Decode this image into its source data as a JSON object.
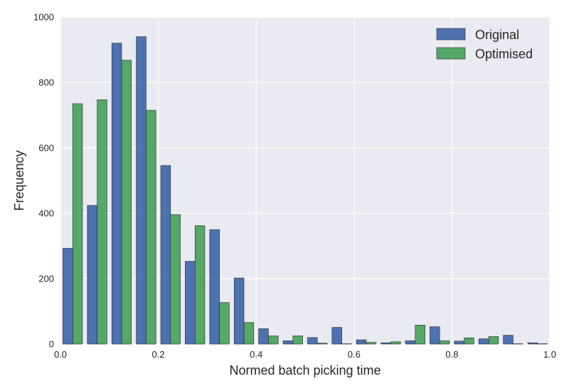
{
  "chart_data": {
    "type": "bar",
    "xlabel": "Normed batch picking time",
    "ylabel": "Frequency",
    "xlim": [
      0.0,
      1.0
    ],
    "ylim": [
      0,
      1000
    ],
    "xticks": [
      "0.0",
      "0.2",
      "0.4",
      "0.6",
      "0.8",
      "1.0"
    ],
    "yticks": [
      "0",
      "200",
      "400",
      "600",
      "800",
      "1000"
    ],
    "grid": true,
    "legend_position": "top-right",
    "bin_width": 0.05,
    "bin_starts": [
      0.0,
      0.05,
      0.1,
      0.15,
      0.2,
      0.25,
      0.3,
      0.35,
      0.4,
      0.45,
      0.5,
      0.55,
      0.6,
      0.65,
      0.7,
      0.75,
      0.8,
      0.85,
      0.9,
      0.95
    ],
    "series": [
      {
        "name": "Original",
        "color": "#4C72B0",
        "values": [
          293,
          424,
          920,
          940,
          546,
          253,
          350,
          202,
          47,
          10,
          20,
          51,
          13,
          4,
          10,
          53,
          9,
          16,
          27,
          4
        ]
      },
      {
        "name": "Optimised",
        "color": "#55A868",
        "values": [
          735,
          747,
          868,
          715,
          396,
          362,
          127,
          66,
          25,
          25,
          3,
          1,
          5,
          7,
          58,
          10,
          19,
          23,
          1,
          1
        ]
      }
    ]
  },
  "colors": {
    "plot_background": "#EAEAF2",
    "grid": "#FFFFFF",
    "text": "#262626"
  }
}
